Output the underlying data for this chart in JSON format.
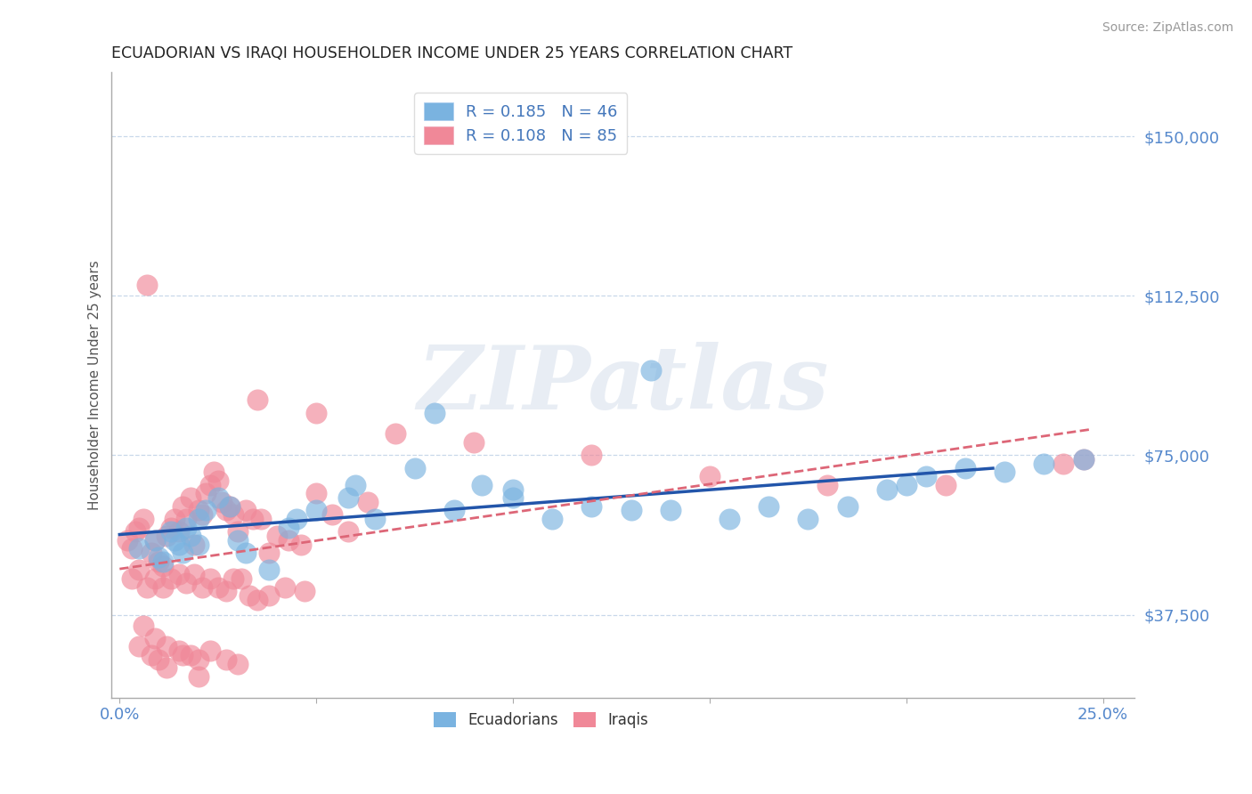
{
  "title": "ECUADORIAN VS IRAQI HOUSEHOLDER INCOME UNDER 25 YEARS CORRELATION CHART",
  "source": "Source: ZipAtlas.com",
  "ylabel": "Householder Income Under 25 years",
  "xlim": [
    -0.002,
    0.258
  ],
  "ylim": [
    18000,
    165000
  ],
  "yticks": [
    37500,
    75000,
    112500,
    150000
  ],
  "ytick_labels": [
    "$37,500",
    "$75,000",
    "$112,500",
    "$150,000"
  ],
  "xticks": [
    0.0,
    0.05,
    0.1,
    0.15,
    0.2,
    0.25
  ],
  "xtick_labels": [
    "0.0%",
    "",
    "",
    "",
    "",
    "25.0%"
  ],
  "watermark": "ZIPatlas",
  "legend_entries": [
    {
      "label": "R = 0.185   N = 46",
      "color": "#a8c8f0"
    },
    {
      "label": "R = 0.108   N = 85",
      "color": "#f0a8b8"
    }
  ],
  "legend_bottom_labels": [
    "Ecuadorians",
    "Iraqis"
  ],
  "ecuadorians_color": "#7ab3e0",
  "iraqis_color": "#f08898",
  "trendline_ecu_color": "#2255aa",
  "trendline_irq_color": "#dd6677",
  "background_color": "#ffffff",
  "ecu_x": [
    0.005,
    0.009,
    0.011,
    0.013,
    0.015,
    0.016,
    0.017,
    0.018,
    0.02,
    0.022,
    0.025,
    0.028,
    0.032,
    0.038,
    0.043,
    0.05,
    0.058,
    0.065,
    0.075,
    0.085,
    0.092,
    0.1,
    0.11,
    0.12,
    0.13,
    0.14,
    0.155,
    0.165,
    0.175,
    0.185,
    0.195,
    0.205,
    0.215,
    0.225,
    0.235,
    0.245,
    0.01,
    0.014,
    0.02,
    0.03,
    0.045,
    0.06,
    0.08,
    0.1,
    0.135,
    0.2
  ],
  "ecu_y": [
    53000,
    55000,
    50000,
    57000,
    54000,
    52000,
    58000,
    56000,
    60000,
    62000,
    65000,
    63000,
    52000,
    48000,
    58000,
    62000,
    65000,
    60000,
    72000,
    62000,
    68000,
    65000,
    60000,
    63000,
    62000,
    62000,
    60000,
    63000,
    60000,
    63000,
    67000,
    70000,
    72000,
    71000,
    73000,
    74000,
    51000,
    55000,
    54000,
    55000,
    60000,
    68000,
    85000,
    67000,
    95000,
    68000
  ],
  "irq_x": [
    0.002,
    0.003,
    0.004,
    0.005,
    0.006,
    0.007,
    0.008,
    0.009,
    0.01,
    0.011,
    0.012,
    0.013,
    0.014,
    0.015,
    0.016,
    0.017,
    0.018,
    0.019,
    0.02,
    0.021,
    0.022,
    0.023,
    0.024,
    0.025,
    0.026,
    0.027,
    0.028,
    0.029,
    0.03,
    0.032,
    0.034,
    0.036,
    0.038,
    0.04,
    0.043,
    0.046,
    0.05,
    0.054,
    0.058,
    0.063,
    0.003,
    0.005,
    0.007,
    0.009,
    0.011,
    0.013,
    0.015,
    0.017,
    0.019,
    0.021,
    0.023,
    0.025,
    0.027,
    0.029,
    0.031,
    0.033,
    0.035,
    0.038,
    0.042,
    0.047,
    0.005,
    0.008,
    0.01,
    0.012,
    0.015,
    0.018,
    0.02,
    0.023,
    0.027,
    0.03,
    0.035,
    0.05,
    0.07,
    0.09,
    0.12,
    0.15,
    0.18,
    0.21,
    0.24,
    0.245,
    0.006,
    0.009,
    0.012,
    0.016,
    0.02
  ],
  "irq_y": [
    55000,
    53000,
    57000,
    58000,
    60000,
    115000,
    52000,
    55000,
    50000,
    49000,
    56000,
    58000,
    60000,
    57000,
    63000,
    60000,
    65000,
    54000,
    62000,
    61000,
    66000,
    68000,
    71000,
    69000,
    64000,
    62000,
    63000,
    61000,
    57000,
    62000,
    60000,
    60000,
    52000,
    56000,
    55000,
    54000,
    66000,
    61000,
    57000,
    64000,
    46000,
    48000,
    44000,
    46000,
    44000,
    46000,
    47000,
    45000,
    47000,
    44000,
    46000,
    44000,
    43000,
    46000,
    46000,
    42000,
    41000,
    42000,
    44000,
    43000,
    30000,
    28000,
    27000,
    30000,
    29000,
    28000,
    27000,
    29000,
    27000,
    26000,
    88000,
    85000,
    80000,
    78000,
    75000,
    70000,
    68000,
    68000,
    73000,
    74000,
    35000,
    32000,
    25000,
    28000,
    23000
  ]
}
